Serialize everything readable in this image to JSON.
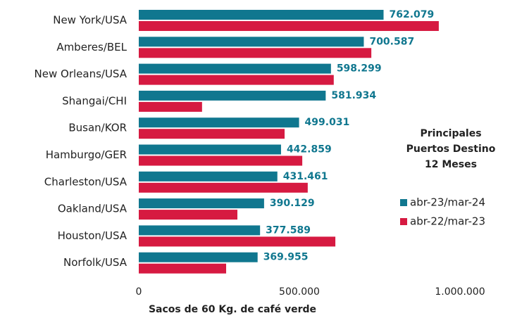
{
  "chart_data": {
    "type": "hbar",
    "categories": [
      "New York/USA",
      "Amberes/BEL",
      "New Orleans/USA",
      "Shangai/CHI",
      "Busan/KOR",
      "Hamburgo/GER",
      "Charleston/USA",
      "Oakland/USA",
      "Houston/USA",
      "Norfolk/USA"
    ],
    "series": [
      {
        "name": "abr-23/mar-24",
        "color": "#10778f",
        "values": [
          762079,
          700587,
          598299,
          581934,
          499031,
          442859,
          431461,
          390129,
          377589,
          369955
        ],
        "value_labels": [
          "762.079",
          "700.587",
          "598.299",
          "581.934",
          "499.031",
          "442.859",
          "431.461",
          "390.129",
          "377.589",
          "369.955"
        ]
      },
      {
        "name": "abr-22/mar-23",
        "color": "#d61a41",
        "values": [
          934000,
          724000,
          607000,
          197000,
          454000,
          509000,
          526000,
          307000,
          612000,
          272000
        ]
      }
    ],
    "xlim": [
      0,
      1000000
    ],
    "xticks": [
      0,
      {
        "value": 500000,
        "label": "500.000"
      },
      {
        "value": 1000000,
        "label": "1.000.000"
      }
    ],
    "xlabel": "Sacos de 60 Kg. de café verde",
    "legend_title": [
      "Principales",
      "Puertos Destino",
      "12 Meses"
    ],
    "legend": "right"
  }
}
